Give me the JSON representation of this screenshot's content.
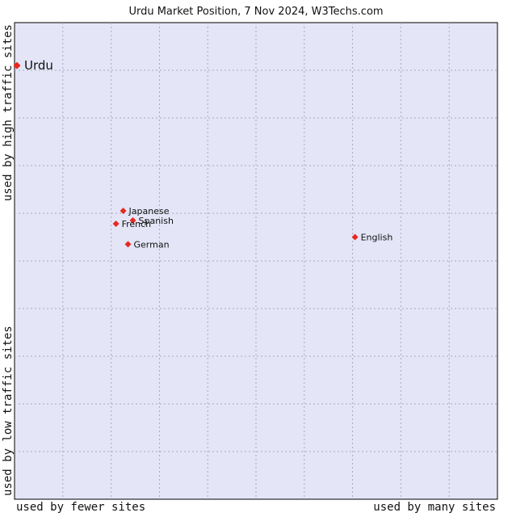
{
  "chart_data": {
    "type": "scatter",
    "title": "Urdu Market Position, 7 Nov 2024, W3Techs.com",
    "xlabel_left": "used by fewer sites",
    "xlabel_right": "used by many sites",
    "ylabel_bottom": "used by low traffic sites",
    "ylabel_top": "used by high traffic sites",
    "xlim": [
      0,
      10
    ],
    "ylim": [
      0,
      10
    ],
    "grid": true,
    "background_color": "#e4e6f8",
    "point_color": "#e8281e",
    "points": [
      {
        "label": "Urdu",
        "x": 0.05,
        "y": 9.1,
        "highlight": true
      },
      {
        "label": "Japanese",
        "x": 2.25,
        "y": 6.05
      },
      {
        "label": "Spanish",
        "x": 2.45,
        "y": 5.85
      },
      {
        "label": "French",
        "x": 2.1,
        "y": 5.78
      },
      {
        "label": "German",
        "x": 2.35,
        "y": 5.35
      },
      {
        "label": "English",
        "x": 7.05,
        "y": 5.5
      }
    ]
  }
}
